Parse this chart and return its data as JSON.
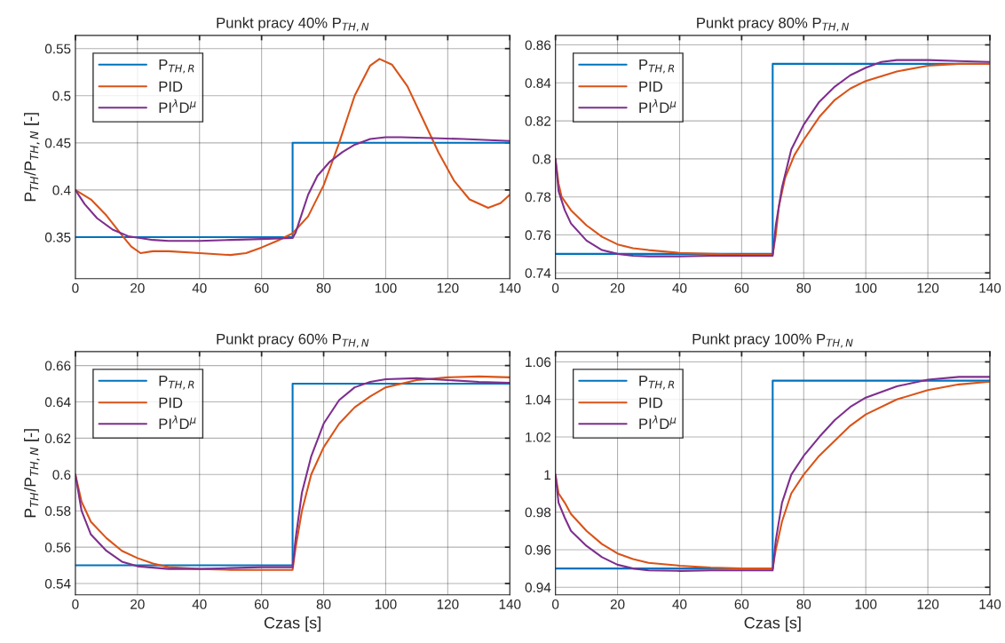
{
  "chart_data": [
    {
      "type": "line",
      "title": "Punkt pracy 40% P$_{TH,N}$",
      "ylabel": "P$_{TH}$/P$_{TH,N}$ [-]",
      "xlim": [
        0,
        140
      ],
      "xticks": [
        0,
        20,
        40,
        60,
        80,
        100,
        120,
        140
      ],
      "ylim": [
        0.306,
        0.564
      ],
      "yticks": [
        0.35,
        0.4,
        0.45,
        0.5,
        0.55
      ],
      "grid": true,
      "legend": "top left",
      "series": [
        {
          "name": "P$_{TH,R}$",
          "color": "#0072bd",
          "x": [
            0,
            70,
            70,
            140
          ],
          "values": [
            0.35,
            0.35,
            0.45,
            0.45
          ]
        },
        {
          "name": "PID",
          "color": "#d95319",
          "x": [
            0,
            5,
            10,
            15,
            18,
            21,
            25,
            30,
            40,
            50,
            55,
            60,
            65,
            70,
            75,
            80,
            85,
            90,
            95,
            98,
            102,
            107,
            112,
            117,
            122,
            127,
            133,
            137,
            140
          ],
          "values": [
            0.4,
            0.39,
            0.373,
            0.352,
            0.34,
            0.333,
            0.335,
            0.335,
            0.333,
            0.331,
            0.333,
            0.339,
            0.346,
            0.354,
            0.372,
            0.405,
            0.45,
            0.5,
            0.532,
            0.539,
            0.533,
            0.51,
            0.475,
            0.44,
            0.41,
            0.39,
            0.381,
            0.386,
            0.395
          ]
        },
        {
          "name": "PI$^{λ}$D$^{μ}$",
          "color": "#7e2f8e",
          "x": [
            0,
            3,
            7,
            12,
            17,
            25,
            30,
            40,
            50,
            60,
            70,
            71,
            73,
            75,
            78,
            82,
            86,
            90,
            95,
            100,
            105,
            115,
            125,
            140
          ],
          "values": [
            0.4,
            0.385,
            0.37,
            0.358,
            0.351,
            0.347,
            0.346,
            0.346,
            0.347,
            0.348,
            0.349,
            0.355,
            0.375,
            0.395,
            0.415,
            0.43,
            0.44,
            0.448,
            0.454,
            0.456,
            0.456,
            0.455,
            0.454,
            0.452
          ]
        }
      ]
    },
    {
      "type": "line",
      "title": "Punkt pracy 80% P$_{TH,N}$",
      "xlim": [
        0,
        140
      ],
      "xticks": [
        0,
        20,
        40,
        60,
        80,
        100,
        120,
        140
      ],
      "ylim": [
        0.737,
        0.865
      ],
      "yticks": [
        0.74,
        0.76,
        0.78,
        0.8,
        0.82,
        0.84,
        0.86
      ],
      "grid": true,
      "legend": "top left",
      "series": [
        {
          "name": "P$_{TH,R}$",
          "color": "#0072bd",
          "x": [
            0,
            70,
            70,
            140
          ],
          "values": [
            0.75,
            0.75,
            0.85,
            0.85
          ]
        },
        {
          "name": "PID",
          "color": "#d95319",
          "x": [
            0,
            1,
            2,
            5,
            10,
            15,
            20,
            25,
            30,
            40,
            50,
            60,
            70,
            71,
            72,
            74,
            77,
            80,
            85,
            90,
            95,
            100,
            110,
            120,
            130,
            140
          ],
          "values": [
            0.8,
            0.787,
            0.78,
            0.773,
            0.765,
            0.759,
            0.755,
            0.753,
            0.752,
            0.7505,
            0.75,
            0.7497,
            0.7497,
            0.76,
            0.775,
            0.79,
            0.802,
            0.81,
            0.822,
            0.831,
            0.837,
            0.841,
            0.846,
            0.849,
            0.85,
            0.85
          ]
        },
        {
          "name": "PI$^{λ}$D$^{μ}$",
          "color": "#7e2f8e",
          "x": [
            0,
            1,
            3,
            5,
            10,
            15,
            20,
            25,
            30,
            40,
            50,
            60,
            70,
            71,
            73,
            76,
            80,
            85,
            90,
            95,
            100,
            105,
            110,
            120,
            130,
            140
          ],
          "values": [
            0.8,
            0.783,
            0.773,
            0.766,
            0.757,
            0.752,
            0.75,
            0.749,
            0.7487,
            0.7487,
            0.749,
            0.749,
            0.749,
            0.765,
            0.785,
            0.805,
            0.818,
            0.83,
            0.838,
            0.844,
            0.848,
            0.851,
            0.852,
            0.852,
            0.8515,
            0.851
          ]
        }
      ]
    },
    {
      "type": "line",
      "title": "Punkt pracy 60% P$_{TH,N}$",
      "xlabel": "Czas [s]",
      "ylabel": "P$_{TH}$/P$_{TH,N}$ [-]",
      "xlim": [
        0,
        140
      ],
      "xticks": [
        0,
        20,
        40,
        60,
        80,
        100,
        120,
        140
      ],
      "ylim": [
        0.5338,
        0.6677
      ],
      "yticks": [
        0.54,
        0.56,
        0.58,
        0.6,
        0.62,
        0.64,
        0.66
      ],
      "grid": true,
      "legend": "top left",
      "series": [
        {
          "name": "P$_{TH,R}$",
          "color": "#0072bd",
          "x": [
            0,
            70,
            70,
            140
          ],
          "values": [
            0.55,
            0.55,
            0.65,
            0.65
          ]
        },
        {
          "name": "PID",
          "color": "#d95319",
          "x": [
            0,
            2,
            5,
            10,
            15,
            20,
            25,
            30,
            40,
            50,
            60,
            70,
            71,
            73,
            76,
            80,
            85,
            90,
            95,
            100,
            110,
            120,
            130,
            140
          ],
          "values": [
            0.6,
            0.585,
            0.574,
            0.565,
            0.558,
            0.554,
            0.551,
            0.549,
            0.548,
            0.5475,
            0.5475,
            0.5475,
            0.56,
            0.58,
            0.6,
            0.615,
            0.628,
            0.637,
            0.643,
            0.648,
            0.652,
            0.6535,
            0.654,
            0.6535
          ]
        },
        {
          "name": "PI$^{λ}$D$^{μ}$",
          "color": "#7e2f8e",
          "x": [
            0,
            2,
            5,
            10,
            15,
            20,
            30,
            40,
            50,
            60,
            70,
            71,
            73,
            76,
            80,
            85,
            90,
            95,
            100,
            110,
            120,
            130,
            140
          ],
          "values": [
            0.6,
            0.58,
            0.567,
            0.558,
            0.552,
            0.5495,
            0.548,
            0.548,
            0.5485,
            0.549,
            0.549,
            0.565,
            0.59,
            0.61,
            0.628,
            0.641,
            0.648,
            0.651,
            0.6525,
            0.653,
            0.652,
            0.651,
            0.6505
          ]
        }
      ]
    },
    {
      "type": "line",
      "title": "Punkt pracy 100% P$_{TH,N}$",
      "xlabel": "Czas [s]",
      "xlim": [
        0,
        140
      ],
      "xticks": [
        0,
        20,
        40,
        60,
        80,
        100,
        120,
        140
      ],
      "ylim": [
        0.936,
        1.0655
      ],
      "yticks": [
        0.94,
        0.96,
        0.98,
        1,
        1.02,
        1.04,
        1.06
      ],
      "grid": true,
      "legend": "top left",
      "series": [
        {
          "name": "P$_{TH,R}$",
          "color": "#0072bd",
          "x": [
            0,
            70,
            70,
            140
          ],
          "values": [
            0.95,
            0.95,
            1.05,
            1.05
          ]
        },
        {
          "name": "PID",
          "color": "#d95319",
          "x": [
            0,
            1,
            3,
            5,
            10,
            15,
            20,
            25,
            30,
            40,
            50,
            60,
            70,
            71,
            73,
            76,
            80,
            85,
            90,
            95,
            100,
            110,
            120,
            130,
            140
          ],
          "values": [
            1.0,
            0.99,
            0.985,
            0.979,
            0.97,
            0.963,
            0.958,
            0.955,
            0.953,
            0.9515,
            0.9505,
            0.95,
            0.95,
            0.96,
            0.975,
            0.99,
            1.0,
            1.01,
            1.018,
            1.026,
            1.032,
            1.04,
            1.045,
            1.048,
            1.0495
          ]
        },
        {
          "name": "PI$^{λ}$D$^{μ}$",
          "color": "#7e2f8e",
          "x": [
            0,
            1,
            3,
            5,
            10,
            15,
            20,
            25,
            30,
            40,
            50,
            60,
            70,
            71,
            73,
            76,
            80,
            85,
            90,
            95,
            100,
            110,
            120,
            130,
            140
          ],
          "values": [
            1.0,
            0.985,
            0.977,
            0.97,
            0.962,
            0.956,
            0.952,
            0.95,
            0.949,
            0.9487,
            0.949,
            0.949,
            0.949,
            0.965,
            0.985,
            1.0,
            1.01,
            1.02,
            1.029,
            1.036,
            1.041,
            1.047,
            1.0505,
            1.052,
            1.052
          ]
        }
      ]
    }
  ]
}
